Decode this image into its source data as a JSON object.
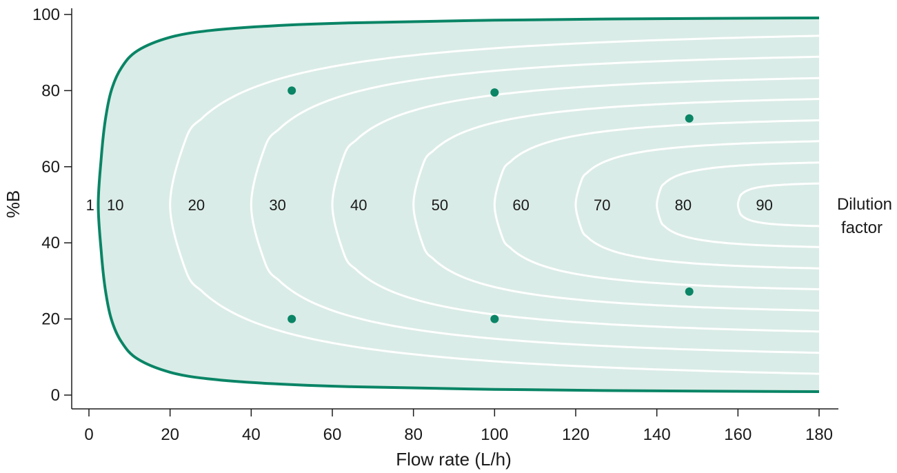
{
  "chart_data": {
    "type": "area",
    "xlabel": "Flow rate (L/h)",
    "ylabel": "%B",
    "xlim": [
      0,
      180
    ],
    "ylim": [
      0,
      100
    ],
    "xticks": [
      "0",
      "20",
      "40",
      "60",
      "80",
      "100",
      "120",
      "140",
      "160",
      "180"
    ],
    "yticks": [
      "0",
      "20",
      "40",
      "60",
      "80",
      "100"
    ],
    "grid": false,
    "colors": {
      "boundary": "#0a8566",
      "fill": "#daece7",
      "contour": "#ffffff",
      "point": "#0a8566"
    },
    "boundary": {
      "name": "1",
      "upper": [
        [
          2.3,
          50
        ],
        [
          3,
          62
        ],
        [
          4,
          72
        ],
        [
          5.5,
          80
        ],
        [
          8,
          86
        ],
        [
          12,
          90.5
        ],
        [
          20,
          94
        ],
        [
          30,
          95.8
        ],
        [
          45,
          97
        ],
        [
          65,
          97.8
        ],
        [
          100,
          98.5
        ],
        [
          140,
          98.9
        ],
        [
          180,
          99.1
        ]
      ],
      "lower": [
        [
          2.3,
          50
        ],
        [
          3,
          38
        ],
        [
          4,
          28
        ],
        [
          5.5,
          20
        ],
        [
          8,
          14
        ],
        [
          12,
          9.5
        ],
        [
          20,
          6
        ],
        [
          30,
          4.2
        ],
        [
          45,
          3
        ],
        [
          65,
          2.2
        ],
        [
          100,
          1.5
        ],
        [
          140,
          1.1
        ],
        [
          180,
          0.9
        ]
      ]
    },
    "contours": [
      {
        "label": "10",
        "vertex_x": 20,
        "y_top_at_180": 94.4
      },
      {
        "label": "20",
        "vertex_x": 40,
        "y_top_at_180": 88.9
      },
      {
        "label": "30",
        "vertex_x": 60,
        "y_top_at_180": 83.3
      },
      {
        "label": "40",
        "vertex_x": 80,
        "y_top_at_180": 77.8
      },
      {
        "label": "50",
        "vertex_x": 100,
        "y_top_at_180": 72.2
      },
      {
        "label": "60",
        "vertex_x": 120,
        "y_top_at_180": 66.7
      },
      {
        "label": "70",
        "vertex_x": 140,
        "y_top_at_180": 61.1
      },
      {
        "label": "80",
        "vertex_x": 160,
        "y_top_at_180": 55.6
      }
    ],
    "curve_labels": [
      "1",
      "10",
      "20",
      "30",
      "40",
      "50",
      "60",
      "70",
      "80",
      "90"
    ],
    "points": [
      {
        "x": 50,
        "y": 80
      },
      {
        "x": 50,
        "y": 20
      },
      {
        "x": 100,
        "y": 79.5
      },
      {
        "x": 100,
        "y": 20
      },
      {
        "x": 148,
        "y": 72.7
      },
      {
        "x": 148,
        "y": 27.2
      }
    ],
    "annotation_line1": "Dilution",
    "annotation_line2": "factor"
  }
}
